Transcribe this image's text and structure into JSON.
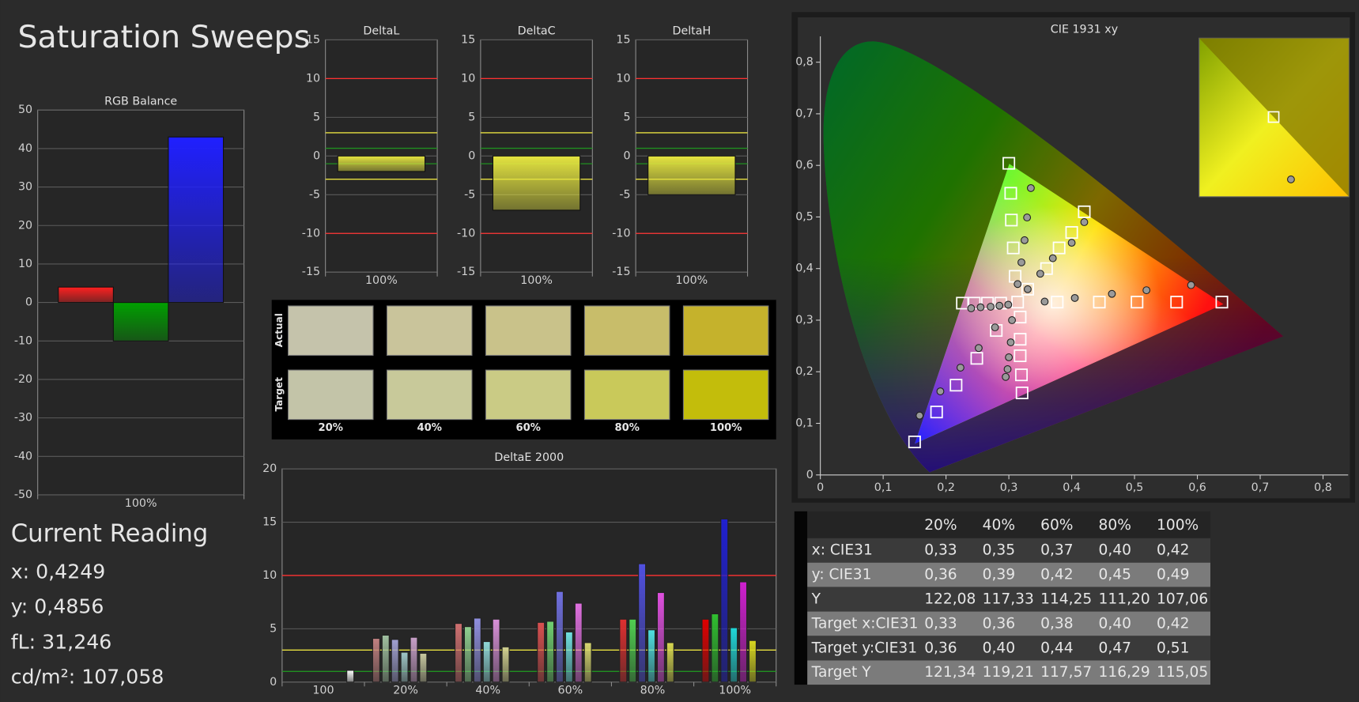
{
  "title": "Saturation Sweeps",
  "chart_data": [
    {
      "type": "bar",
      "title": "RGB Balance",
      "categories": [
        "100%"
      ],
      "series": [
        {
          "color": "#ff2020",
          "values": [
            4
          ]
        },
        {
          "color": "#00a000",
          "values": [
            -10
          ]
        },
        {
          "color": "#2020ff",
          "values": [
            43
          ]
        }
      ],
      "ylim": [
        -50,
        50
      ],
      "yticks": [
        -50,
        -40,
        -30,
        -20,
        -10,
        0,
        10,
        20,
        30,
        40,
        50
      ],
      "grid": true
    },
    {
      "type": "bar",
      "title": "DeltaL",
      "categories": [
        "100%"
      ],
      "series": [
        {
          "color": "#e4e440",
          "values": [
            -2
          ]
        }
      ],
      "ylim": [
        -15,
        15
      ],
      "yticks": [
        -15,
        -10,
        -5,
        0,
        5,
        10,
        15
      ],
      "grid": true,
      "reference_lines": [
        {
          "value": 10,
          "color": "#ff3030"
        },
        {
          "value": -10,
          "color": "#ff3030"
        },
        {
          "value": 3,
          "color": "#e8e040"
        },
        {
          "value": -3,
          "color": "#e8e040"
        },
        {
          "value": 1,
          "color": "#209020"
        },
        {
          "value": -1,
          "color": "#209020"
        }
      ]
    },
    {
      "type": "bar",
      "title": "DeltaC",
      "categories": [
        "100%"
      ],
      "series": [
        {
          "color": "#e4e440",
          "values": [
            -7
          ]
        }
      ],
      "ylim": [
        -15,
        15
      ],
      "yticks": [
        -15,
        -10,
        -5,
        0,
        5,
        10,
        15
      ],
      "grid": true,
      "reference_lines": [
        {
          "value": 10,
          "color": "#ff3030"
        },
        {
          "value": -10,
          "color": "#ff3030"
        },
        {
          "value": 3,
          "color": "#e8e040"
        },
        {
          "value": -3,
          "color": "#e8e040"
        },
        {
          "value": 1,
          "color": "#209020"
        },
        {
          "value": -1,
          "color": "#209020"
        }
      ]
    },
    {
      "type": "bar",
      "title": "DeltaH",
      "categories": [
        "100%"
      ],
      "series": [
        {
          "color": "#e4e440",
          "values": [
            -5
          ]
        }
      ],
      "ylim": [
        -15,
        15
      ],
      "yticks": [
        -15,
        -10,
        -5,
        0,
        5,
        10,
        15
      ],
      "grid": true,
      "reference_lines": [
        {
          "value": 10,
          "color": "#ff3030"
        },
        {
          "value": -10,
          "color": "#ff3030"
        },
        {
          "value": 3,
          "color": "#e8e040"
        },
        {
          "value": -3,
          "color": "#e8e040"
        },
        {
          "value": 1,
          "color": "#209020"
        },
        {
          "value": -1,
          "color": "#209020"
        }
      ]
    },
    {
      "type": "bar",
      "title": "DeltaE 2000",
      "categories": [
        "100",
        "20%",
        "40%",
        "60%",
        "80%",
        "100%"
      ],
      "series": [
        {
          "colors": [
            null,
            "#c08080",
            "#d07070",
            "#d85050",
            "#e03030",
            "#e00000"
          ],
          "values": [
            null,
            4.1,
            5.5,
            5.6,
            5.9,
            5.9
          ]
        },
        {
          "colors": [
            null,
            "#a0c0a0",
            "#90d090",
            "#70d070",
            "#50d050",
            "#30c030"
          ],
          "values": [
            null,
            4.4,
            5.2,
            5.7,
            5.9,
            6.4
          ]
        },
        {
          "colors": [
            null,
            "#a0a0d0",
            "#9090e0",
            "#7070e0",
            "#5050e0",
            "#2020d0"
          ],
          "values": [
            null,
            4.0,
            6.0,
            8.5,
            11.1,
            15.3
          ]
        },
        {
          "colors": [
            null,
            "#a0c8c8",
            "#90d8d8",
            "#70e0e0",
            "#50e0e0",
            "#20d8d8"
          ],
          "values": [
            null,
            2.8,
            3.8,
            4.7,
            4.9,
            5.1
          ]
        },
        {
          "colors": [
            null,
            "#c8a0c8",
            "#d890d8",
            "#e070e0",
            "#e050e0",
            "#d020d0"
          ],
          "values": [
            null,
            4.2,
            5.9,
            7.4,
            8.4,
            9.4
          ]
        },
        {
          "colors": [
            null,
            "#c8c8a0",
            "#d0d090",
            "#d8d870",
            "#d8d850",
            "#d8d820"
          ],
          "values": [
            null,
            2.7,
            3.3,
            3.7,
            3.7,
            3.9
          ]
        },
        {
          "colors": [
            "#ffffff",
            null,
            null,
            null,
            null,
            null
          ],
          "values": [
            1.1,
            null,
            null,
            null,
            null,
            null
          ]
        }
      ],
      "ylim": [
        0,
        20
      ],
      "yticks": [
        0,
        5,
        10,
        15,
        20
      ],
      "grid": true,
      "reference_lines": [
        {
          "value": 10,
          "color": "#ff3030"
        },
        {
          "value": 3,
          "color": "#e8e040"
        },
        {
          "value": 1,
          "color": "#209020"
        }
      ]
    },
    {
      "type": "scatter",
      "title": "CIE 1931 xy",
      "xlim": [
        0,
        0.84
      ],
      "ylim": [
        0,
        0.85
      ],
      "xticks": [
        0,
        {
          "value": 0.1,
          "label": "0,1"
        },
        {
          "value": 0.2,
          "label": "0,2"
        },
        {
          "value": 0.3,
          "label": "0,3"
        },
        {
          "value": 0.4,
          "label": "0,4"
        },
        {
          "value": 0.5,
          "label": "0,5"
        },
        {
          "value": 0.6,
          "label": "0,6"
        },
        {
          "value": 0.7,
          "label": "0,7"
        },
        {
          "value": 0.8,
          "label": "0,8"
        }
      ],
      "yticks": [
        0,
        {
          "value": 0.1,
          "label": "0,1"
        },
        {
          "value": 0.2,
          "label": "0,2"
        },
        {
          "value": 0.3,
          "label": "0,3"
        },
        {
          "value": 0.4,
          "label": "0,4"
        },
        {
          "value": 0.5,
          "label": "0,5"
        },
        {
          "value": 0.6,
          "label": "0,6"
        },
        {
          "value": 0.7,
          "label": "0,7"
        },
        {
          "value": 0.8,
          "label": "0,8"
        }
      ],
      "series": [
        {
          "marker": "square",
          "color": "#ffffff",
          "x": [
            0.3,
            0.303,
            0.304,
            0.307,
            0.31,
            0.314,
            0.377,
            0.444,
            0.504,
            0.567,
            0.639,
            0.28,
            0.249,
            0.216,
            0.185,
            0.15,
            0.226,
            0.245,
            0.266,
            0.287,
            0.318,
            0.318,
            0.318,
            0.32,
            0.321,
            0.33,
            0.36,
            0.38,
            0.4,
            0.42
          ],
          "y": [
            0.604,
            0.546,
            0.494,
            0.44,
            0.385,
            0.335,
            0.335,
            0.335,
            0.335,
            0.335,
            0.335,
            0.28,
            0.226,
            0.174,
            0.122,
            0.064,
            0.333,
            0.333,
            0.333,
            0.333,
            0.306,
            0.263,
            0.231,
            0.194,
            0.159,
            0.36,
            0.4,
            0.44,
            0.47,
            0.51
          ]
        },
        {
          "marker": "circle",
          "color": "#9a9a9a",
          "x": [
            0.335,
            0.329,
            0.325,
            0.32,
            0.314,
            0.357,
            0.405,
            0.464,
            0.519,
            0.59,
            0.278,
            0.252,
            0.223,
            0.191,
            0.158,
            0.24,
            0.255,
            0.271,
            0.285,
            0.299,
            0.305,
            0.303,
            0.3,
            0.298,
            0.295,
            0.33,
            0.35,
            0.37,
            0.4,
            0.42
          ],
          "y": [
            0.556,
            0.499,
            0.455,
            0.412,
            0.37,
            0.336,
            0.343,
            0.351,
            0.358,
            0.368,
            0.286,
            0.246,
            0.208,
            0.162,
            0.115,
            0.323,
            0.325,
            0.326,
            0.328,
            0.33,
            0.3,
            0.257,
            0.228,
            0.205,
            0.19,
            0.36,
            0.39,
            0.42,
            0.45,
            0.49
          ]
        }
      ]
    }
  ],
  "swatches": {
    "rows": [
      "Actual",
      "Target"
    ],
    "columns": [
      "20%",
      "40%",
      "60%",
      "80%",
      "100%"
    ],
    "actual_colors": [
      "#c5c3ab",
      "#c9c49b",
      "#c9c28a",
      "#c8bd6a",
      "#c5b22c"
    ],
    "target_colors": [
      "#c3c4a8",
      "#c8c99a",
      "#cacb85",
      "#c9c95a",
      "#c3bd0b"
    ]
  },
  "current_reading": {
    "title": "Current Reading",
    "lines": [
      "x: 0,4249",
      "y: 0,4856",
      "fL: 31,246",
      "cd/m²: 107,058"
    ]
  },
  "table": {
    "header": [
      "20%",
      "40%",
      "60%",
      "80%",
      "100%"
    ],
    "rows": [
      [
        "x: CIE31",
        "0,33",
        "0,35",
        "0,37",
        "0,40",
        "0,42"
      ],
      [
        "y: CIE31",
        "0,36",
        "0,39",
        "0,42",
        "0,45",
        "0,49"
      ],
      [
        "Y",
        "122,08",
        "117,33",
        "114,25",
        "111,20",
        "107,06"
      ],
      [
        "Target x:CIE31",
        "0,33",
        "0,36",
        "0,38",
        "0,40",
        "0,42"
      ],
      [
        "Target y:CIE31",
        "0,36",
        "0,40",
        "0,44",
        "0,47",
        "0,51"
      ],
      [
        "Target Y",
        "121,34",
        "119,21",
        "117,57",
        "116,29",
        "115,05"
      ]
    ]
  }
}
